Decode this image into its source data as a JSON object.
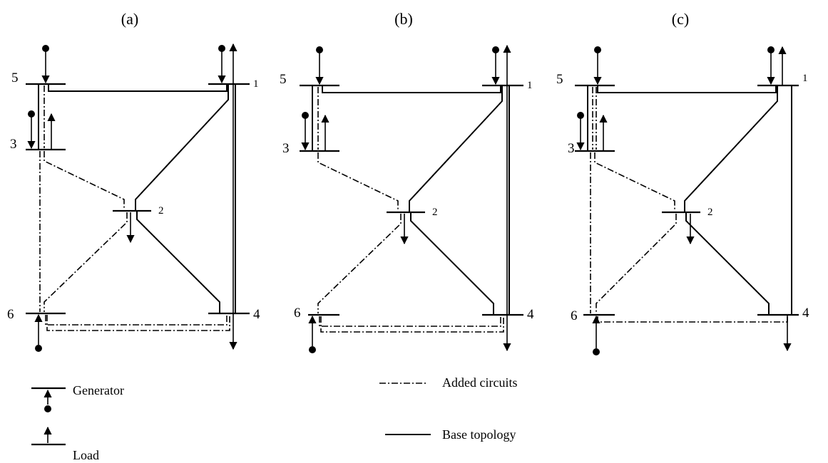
{
  "panels": [
    {
      "title": "(a)"
    },
    {
      "title": "(b)"
    },
    {
      "title": "(c)"
    }
  ],
  "buses": {
    "b1": "1",
    "b2": "2",
    "b3": "3",
    "b4": "4",
    "b5": "5",
    "b6": "6"
  },
  "legend": {
    "generator": "Generator",
    "load": "Load",
    "added": "Added circuits",
    "base": "Base topology"
  }
}
